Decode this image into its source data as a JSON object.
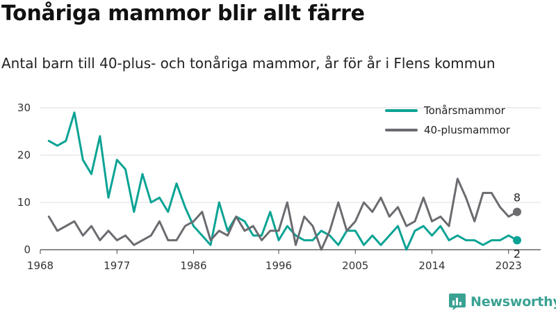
{
  "header": {
    "title": "Tonåriga mammor blir allt färre",
    "subtitle": "Antal barn till 40-plus- och tonåriga mammor, år för år i Flens kommun"
  },
  "brand": {
    "name": "Newsworthy",
    "color": "#3aa293"
  },
  "chart_data": {
    "type": "line",
    "title": "Tonåriga mammor blir allt färre",
    "subtitle": "Antal barn till 40-plus- och tonåriga mammor, år för år i Flens kommun",
    "xlabel": "",
    "ylabel": "",
    "x": [
      1969,
      1970,
      1971,
      1972,
      1973,
      1974,
      1975,
      1976,
      1977,
      1978,
      1979,
      1980,
      1981,
      1982,
      1983,
      1984,
      1985,
      1986,
      1987,
      1988,
      1989,
      1990,
      1991,
      1992,
      1993,
      1994,
      1995,
      1996,
      1997,
      1998,
      1999,
      2000,
      2001,
      2002,
      2003,
      2004,
      2005,
      2006,
      2007,
      2008,
      2009,
      2010,
      2011,
      2012,
      2013,
      2014,
      2015,
      2016,
      2017,
      2018,
      2019,
      2020,
      2021,
      2022,
      2023,
      2024
    ],
    "xticks": [
      1968,
      1977,
      1986,
      1996,
      2005,
      2014,
      2023
    ],
    "xlim": [
      1968,
      2024
    ],
    "yticks": [
      0,
      10,
      20,
      30
    ],
    "ylim": [
      0,
      30
    ],
    "grid": "horizontal",
    "legend": "top-right",
    "series": [
      {
        "name": "Tonårsmammor",
        "color": "#0aa394",
        "values": [
          23,
          22,
          23,
          29,
          19,
          16,
          24,
          11,
          19,
          17,
          8,
          16,
          10,
          11,
          8,
          14,
          9,
          5,
          3,
          1,
          10,
          4,
          7,
          6,
          3,
          3,
          8,
          2,
          5,
          3,
          2,
          2,
          4,
          3,
          1,
          4,
          4,
          1,
          3,
          1,
          3,
          5,
          0,
          4,
          5,
          3,
          5,
          2,
          3,
          2,
          2,
          1,
          2,
          2,
          3,
          2
        ],
        "end_label": "2"
      },
      {
        "name": "40-plusmammor",
        "color": "#6b6b70",
        "values": [
          7,
          4,
          5,
          6,
          3,
          5,
          2,
          4,
          2,
          3,
          1,
          2,
          3,
          6,
          2,
          2,
          5,
          6,
          8,
          2,
          4,
          3,
          7,
          4,
          5,
          2,
          4,
          4,
          10,
          1,
          7,
          5,
          0,
          4,
          10,
          4,
          6,
          10,
          8,
          11,
          7,
          9,
          5,
          6,
          11,
          6,
          7,
          5,
          15,
          11,
          6,
          12,
          12,
          9,
          7,
          8
        ],
        "end_label": "8"
      }
    ]
  }
}
